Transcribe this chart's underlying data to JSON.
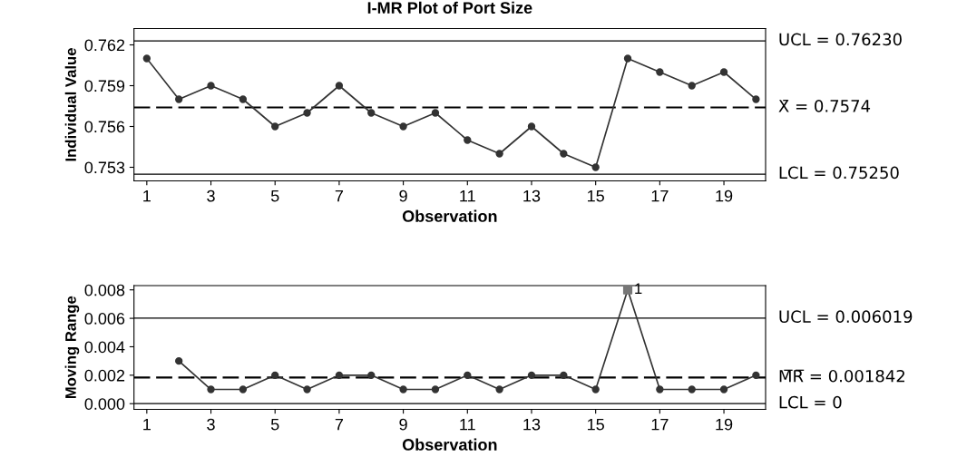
{
  "chart_data": [
    {
      "type": "line",
      "title": "I-MR Plot of Port Size",
      "xlabel": "Observation",
      "ylabel": "Individual Value",
      "marker": "circle",
      "grid": false,
      "legend": false,
      "x": [
        1,
        2,
        3,
        4,
        5,
        6,
        7,
        8,
        9,
        10,
        11,
        12,
        13,
        14,
        15,
        16,
        17,
        18,
        19,
        20
      ],
      "series": [
        {
          "color": "#333333",
          "values": [
            0.761,
            0.758,
            0.759,
            0.758,
            0.756,
            0.757,
            0.759,
            0.757,
            0.756,
            0.757,
            0.755,
            0.754,
            0.756,
            0.754,
            0.753,
            0.761,
            0.76,
            0.759,
            0.76,
            0.758
          ]
        }
      ],
      "xlim": [
        0.6,
        20.3
      ],
      "xticks": [
        1,
        3,
        5,
        7,
        9,
        11,
        13,
        15,
        17,
        19
      ],
      "ylim": [
        0.752,
        0.7632
      ],
      "yticks": [
        0.753,
        0.756,
        0.759,
        0.762
      ],
      "ref_lines": [
        {
          "axis": "y",
          "value": 0.7623,
          "label": "UCL = 0.76230",
          "color": "#000000",
          "line_style": "solid"
        },
        {
          "axis": "y",
          "value": 0.7574,
          "label": "X̄ = 0.7574",
          "color": "#000000",
          "line_style": "dashed"
        },
        {
          "axis": "y",
          "value": 0.7525,
          "label": "LCL = 0.75250",
          "color": "#000000",
          "line_style": "solid"
        }
      ]
    },
    {
      "type": "line",
      "xlabel": "Observation",
      "ylabel": "Moving Range",
      "marker": "circle",
      "grid": false,
      "legend": false,
      "series": [
        {
          "color": "#333333",
          "x": [
            2,
            3,
            4,
            5,
            6,
            7,
            8,
            9,
            10,
            11,
            12,
            13,
            14,
            15,
            16,
            17,
            18,
            19,
            20
          ],
          "values": [
            0.003,
            0.001,
            0.001,
            0.002,
            0.001,
            0.002,
            0.002,
            0.001,
            0.001,
            0.002,
            0.001,
            0.002,
            0.002,
            0.001,
            0.008,
            0.001,
            0.001,
            0.001,
            0.002
          ]
        },
        {
          "type": "scatter",
          "marker": "square",
          "color": "#777777",
          "x": [
            16
          ],
          "values": [
            0.008
          ]
        }
      ],
      "xlim": [
        0.6,
        20.3
      ],
      "xticks": [
        1,
        3,
        5,
        7,
        9,
        11,
        13,
        15,
        17,
        19
      ],
      "ylim": [
        -0.0004,
        0.0083
      ],
      "yticks": [
        {
          "value": 0,
          "label": "0.000"
        },
        0.002,
        0.004,
        0.006,
        0.008
      ],
      "annotations": [
        {
          "text": "1",
          "x": 16,
          "y": 0.008
        }
      ],
      "ref_lines": [
        {
          "axis": "y",
          "value": 0.006019,
          "label": "UCL = 0.006019",
          "color": "#000000",
          "line_style": "solid"
        },
        {
          "axis": "y",
          "value": 0.001842,
          "label": "M̅R̅ = 0.001842",
          "color": "#000000",
          "line_style": "dashed"
        },
        {
          "axis": "y",
          "value": 0,
          "label": "LCL = 0",
          "color": "#000000",
          "line_style": "solid"
        }
      ]
    }
  ]
}
